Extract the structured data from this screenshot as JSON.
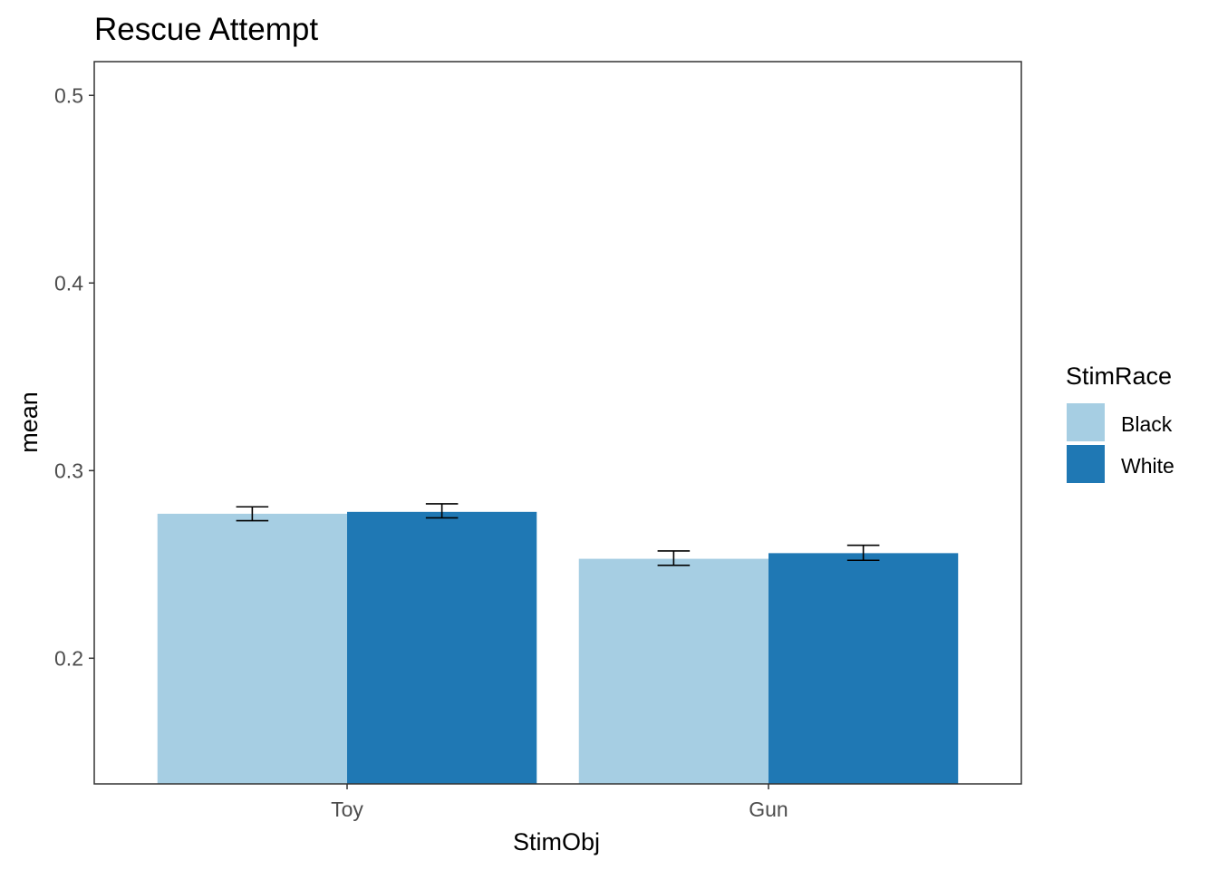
{
  "chart_data": {
    "type": "bar",
    "title": "Rescue Attempt",
    "xlabel": "StimObj",
    "ylabel": "mean",
    "categories": [
      "Toy",
      "Gun"
    ],
    "series": [
      {
        "name": "Black",
        "color": "#a6cee3",
        "values": [
          0.277,
          0.253
        ],
        "error_low": [
          0.2733,
          0.2495
        ],
        "error_high": [
          0.2807,
          0.2572
        ]
      },
      {
        "name": "White",
        "color": "#1f78b4",
        "values": [
          0.278,
          0.256
        ],
        "error_low": [
          0.2748,
          0.2522
        ],
        "error_high": [
          0.2823,
          0.2602
        ]
      }
    ],
    "ylim": [
      0.133,
      0.518
    ],
    "yticks": [
      0.2,
      0.3,
      0.4,
      0.5
    ],
    "ytick_labels": [
      "0.2",
      "0.3",
      "0.4",
      "0.5"
    ],
    "grid": false,
    "legend": {
      "title": "StimRace",
      "position": "right"
    }
  }
}
